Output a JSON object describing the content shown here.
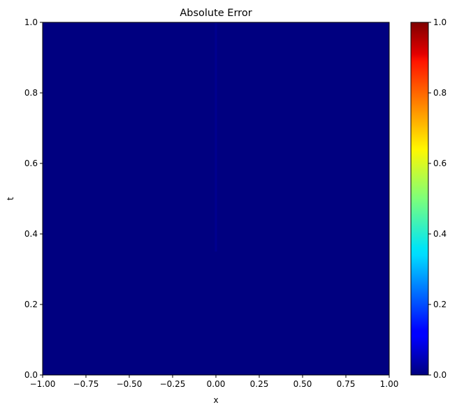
{
  "chart_data": {
    "type": "heatmap",
    "title": "Absolute Error",
    "xlabel": "x",
    "ylabel": "t",
    "xlim": [
      -1.0,
      1.0
    ],
    "ylim": [
      0.0,
      1.0
    ],
    "x_ticks": [
      "−1.00",
      "−0.75",
      "−0.50",
      "−0.25",
      "0.00",
      "0.25",
      "0.50",
      "0.75",
      "1.00"
    ],
    "x_tick_values": [
      -1.0,
      -0.75,
      -0.5,
      -0.25,
      0.0,
      0.25,
      0.5,
      0.75,
      1.0
    ],
    "y_ticks": [
      "0.0",
      "0.2",
      "0.4",
      "0.6",
      "0.8",
      "1.0"
    ],
    "y_tick_values": [
      0.0,
      0.2,
      0.4,
      0.6,
      0.8,
      1.0
    ],
    "colormap": "jet",
    "colorbar": {
      "range": [
        0.0,
        1.0
      ],
      "ticks": [
        "0.0",
        "0.2",
        "0.4",
        "0.6",
        "0.8",
        "1.0"
      ],
      "tick_values": [
        0.0,
        0.2,
        0.4,
        0.6,
        0.8,
        1.0
      ]
    },
    "background_value": 0.0,
    "features": [
      {
        "kind": "vertical-streak",
        "x": 0.0,
        "t_range": [
          0.35,
          1.0
        ],
        "value": 0.02
      }
    ],
    "grid": false
  }
}
